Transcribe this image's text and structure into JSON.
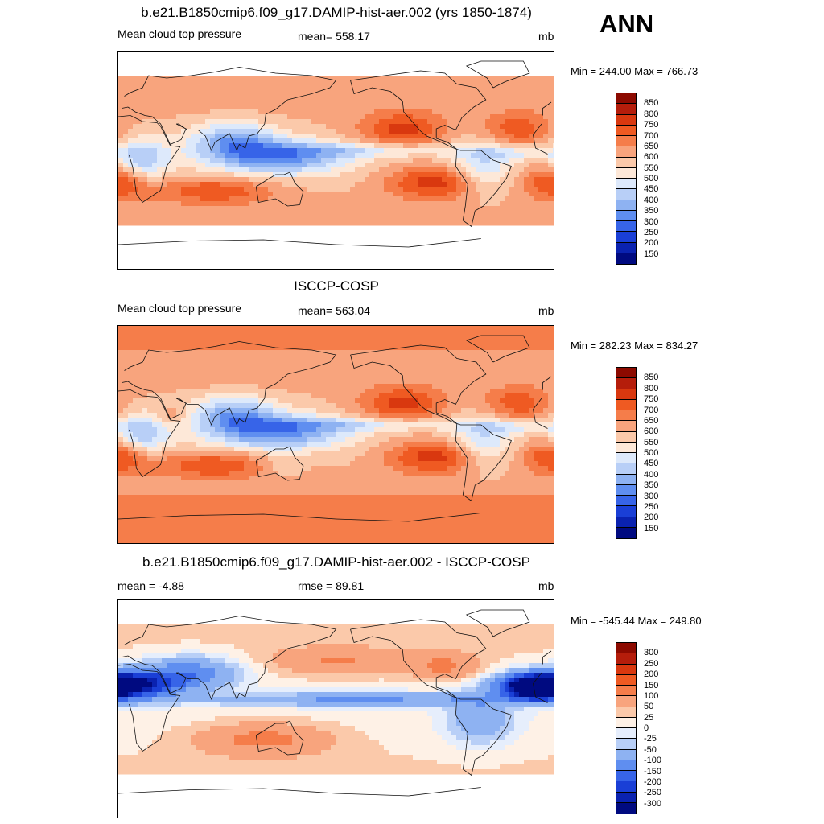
{
  "season": "ANN",
  "panels": [
    {
      "title": "b.e21.B1850cmip6.f09_g17.DAMIP-hist-aer.002 (yrs 1850-1874)",
      "left_label": "Mean cloud top pressure",
      "center_label": "mean= 558.17",
      "units": "mb",
      "minmax": "Min = 244.00 Max = 766.73",
      "colorbar_labels": [
        "850",
        "800",
        "750",
        "700",
        "650",
        "600",
        "550",
        "500",
        "450",
        "400",
        "350",
        "300",
        "250",
        "200",
        "150"
      ],
      "colorbar_colors": [
        "#8c0a00",
        "#b51d0b",
        "#d9380f",
        "#ef5a22",
        "#f57d4a",
        "#f8a47d",
        "#fbc9aa",
        "#fde8d8",
        "#dde9fb",
        "#b8cff7",
        "#8eb2f2",
        "#5f8ef0",
        "#3764e8",
        "#1a3fd6",
        "#0a22b0",
        "#000a80"
      ],
      "field": "mean"
    },
    {
      "title": "ISCCP-COSP",
      "left_label": "Mean cloud top pressure",
      "center_label": "mean= 563.04",
      "units": "mb",
      "minmax": "Min = 282.23 Max = 834.27",
      "colorbar_labels": [
        "850",
        "800",
        "750",
        "700",
        "650",
        "600",
        "550",
        "500",
        "450",
        "400",
        "350",
        "300",
        "250",
        "200",
        "150"
      ],
      "colorbar_colors": [
        "#8c0a00",
        "#b51d0b",
        "#d9380f",
        "#ef5a22",
        "#f57d4a",
        "#f8a47d",
        "#fbc9aa",
        "#fde8d8",
        "#dde9fb",
        "#b8cff7",
        "#8eb2f2",
        "#5f8ef0",
        "#3764e8",
        "#1a3fd6",
        "#0a22b0",
        "#000a80"
      ],
      "field": "obs"
    },
    {
      "title": "b.e21.B1850cmip6.f09_g17.DAMIP-hist-aer.002 - ISCCP-COSP",
      "left_label": "mean =  -4.88",
      "center_label": "rmse =  89.81",
      "units": "mb",
      "minmax": "Min = -545.44 Max = 249.80",
      "colorbar_labels": [
        "300",
        "250",
        "200",
        "150",
        "100",
        "50",
        "25",
        "0",
        "-25",
        "-50",
        "-100",
        "-150",
        "-200",
        "-250",
        "-300"
      ],
      "colorbar_colors": [
        "#8c0a00",
        "#b51d0b",
        "#d9380f",
        "#ef5a22",
        "#f57d4a",
        "#f8a47d",
        "#fbc9aa",
        "#fef1e6",
        "#e6eefc",
        "#b8cff7",
        "#8eb2f2",
        "#5f8ef0",
        "#3764e8",
        "#1a3fd6",
        "#0a22b0",
        "#000a80"
      ],
      "field": "diff"
    }
  ]
}
